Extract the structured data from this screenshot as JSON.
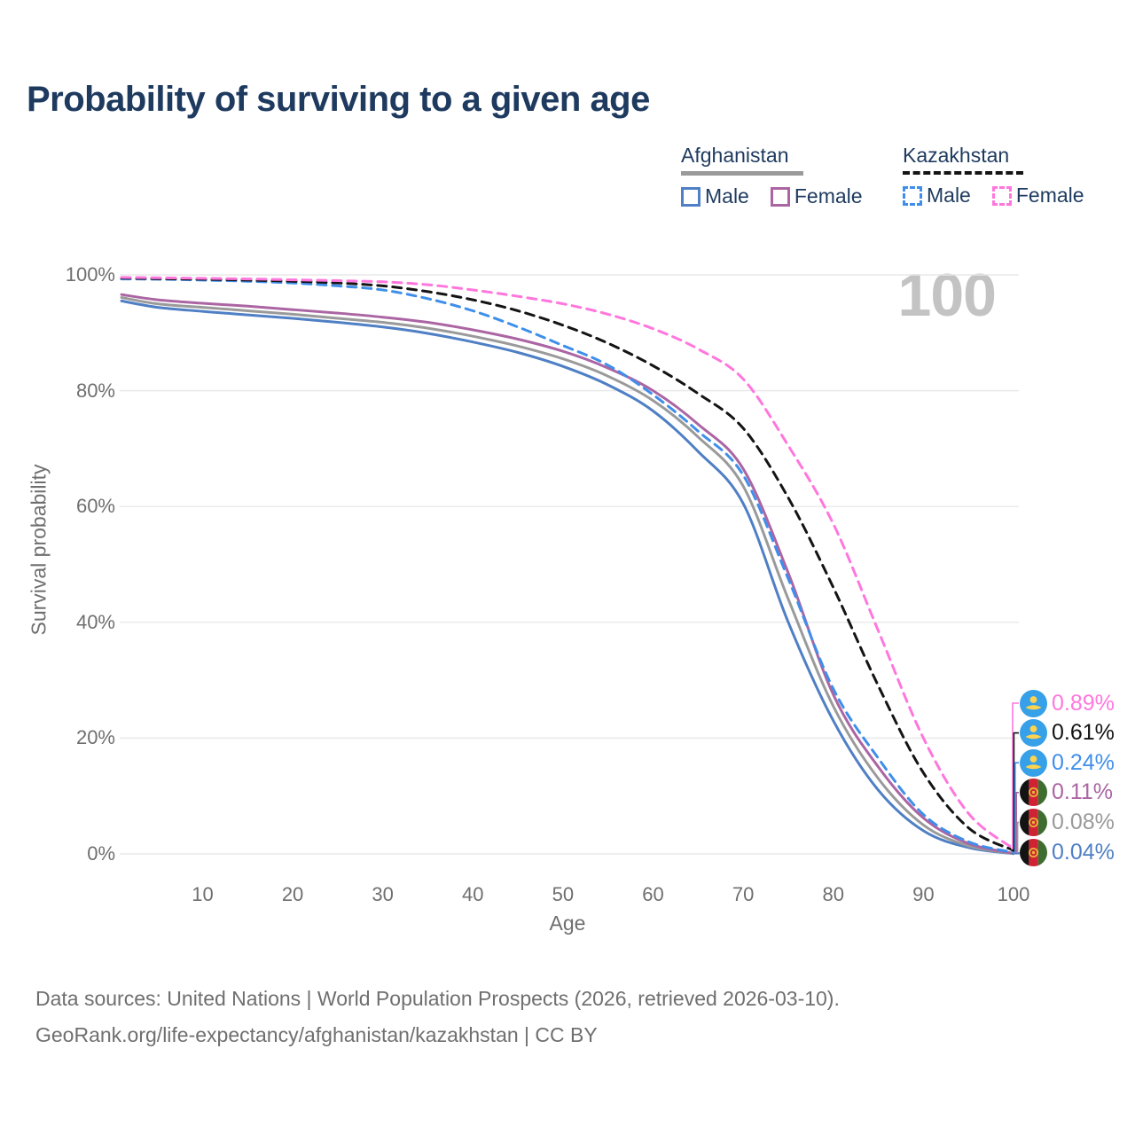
{
  "title": "Probability of surviving to a given age",
  "watermark_age": "100",
  "legend": {
    "groups": [
      {
        "label": "Afghanistan",
        "underline_style": "solid",
        "underline_color": "#9a9a9a",
        "items": [
          {
            "label": "Male",
            "color": "#4f7fc4",
            "dash": false
          },
          {
            "label": "Female",
            "color": "#ab65a3",
            "dash": false
          }
        ]
      },
      {
        "label": "Kazakhstan",
        "underline_style": "dashed",
        "underline_color": "#141414",
        "items": [
          {
            "label": "Male",
            "color": "#3f8fea",
            "dash": true
          },
          {
            "label": "Female",
            "color": "#ff77dd",
            "dash": true
          }
        ]
      }
    ]
  },
  "chart_data": {
    "type": "line",
    "title": "Probability of surviving to a given age",
    "xlabel": "Age",
    "ylabel": "Survival probability",
    "xlim": [
      1,
      100
    ],
    "ylim": [
      0,
      100
    ],
    "x_ticks": [
      10,
      20,
      30,
      40,
      50,
      60,
      70,
      80,
      90,
      100
    ],
    "y_ticks": [
      {
        "value": 100,
        "label": "100%"
      },
      {
        "value": 80,
        "label": "80%"
      },
      {
        "value": 60,
        "label": "60%"
      },
      {
        "value": 40,
        "label": "40%"
      },
      {
        "value": 20,
        "label": "20%"
      },
      {
        "value": 0,
        "label": "0%"
      }
    ],
    "grid": "horizontal",
    "legend_position": "top-right",
    "x": [
      1,
      5,
      10,
      15,
      20,
      25,
      30,
      35,
      40,
      45,
      50,
      55,
      60,
      65,
      70,
      75,
      80,
      85,
      90,
      95,
      100
    ],
    "series": [
      {
        "id": "kazakhstan-female",
        "name": "Kazakhstan Female",
        "country": "Kazakhstan",
        "sex": "Female",
        "color": "#ff77dd",
        "dash": true,
        "flag": "kazakhstan",
        "end_label": "0.89%",
        "values": [
          99.55,
          99.5,
          99.4,
          99.3,
          99.15,
          99.0,
          98.8,
          98.3,
          97.4,
          96.3,
          95.0,
          93.2,
          90.7,
          87.2,
          82.0,
          70.5,
          57.0,
          38.5,
          20.0,
          7.0,
          0.89
        ]
      },
      {
        "id": "kazakhstan-total",
        "name": "Kazakhstan",
        "country": "Kazakhstan",
        "sex": "Both",
        "color": "#141414",
        "dash": true,
        "flag": "kazakhstan",
        "end_label": "0.61%",
        "values": [
          99.45,
          99.35,
          99.25,
          99.1,
          98.9,
          98.6,
          98.1,
          97.1,
          95.7,
          93.8,
          91.3,
          88.2,
          84.3,
          79.5,
          73.5,
          61.5,
          46.0,
          29.0,
          14.0,
          4.5,
          0.61
        ]
      },
      {
        "id": "kazakhstan-male",
        "name": "Kazakhstan Male",
        "country": "Kazakhstan",
        "sex": "Male",
        "color": "#3f8fea",
        "dash": true,
        "flag": "kazakhstan",
        "end_label": "0.24%",
        "values": [
          99.3,
          99.25,
          99.1,
          98.9,
          98.6,
          98.1,
          97.4,
          95.9,
          93.8,
          91.0,
          87.8,
          84.4,
          79.3,
          73.0,
          65.4,
          47.5,
          28.5,
          16.5,
          6.8,
          2.1,
          0.24
        ]
      },
      {
        "id": "afghanistan-female",
        "name": "Afghanistan Female",
        "country": "Afghanistan",
        "sex": "Female",
        "color": "#ab65a3",
        "dash": false,
        "flag": "afghanistan",
        "end_label": "0.11%",
        "values": [
          96.6,
          95.7,
          95.1,
          94.6,
          94.0,
          93.4,
          92.7,
          91.8,
          90.5,
          88.9,
          86.8,
          83.9,
          80.0,
          74.2,
          66.5,
          48.5,
          27.5,
          15.0,
          6.2,
          1.8,
          0.11
        ]
      },
      {
        "id": "afghanistan-total",
        "name": "Afghanistan",
        "country": "Afghanistan",
        "sex": "Both",
        "color": "#9a9a9a",
        "dash": false,
        "flag": "afghanistan",
        "end_label": "0.08%",
        "values": [
          96.1,
          95.0,
          94.4,
          93.8,
          93.2,
          92.5,
          91.8,
          90.8,
          89.4,
          87.7,
          85.5,
          82.5,
          78.3,
          72.0,
          63.5,
          44.0,
          25.5,
          13.0,
          5.0,
          1.4,
          0.08
        ]
      },
      {
        "id": "afghanistan-male",
        "name": "Afghanistan Male",
        "country": "Afghanistan",
        "sex": "Male",
        "color": "#4f7fc4",
        "dash": false,
        "flag": "afghanistan",
        "end_label": "0.04%",
        "values": [
          95.5,
          94.4,
          93.7,
          93.1,
          92.5,
          91.8,
          91.0,
          89.9,
          88.4,
          86.6,
          84.2,
          81.0,
          76.5,
          69.5,
          60.5,
          40.0,
          23.0,
          11.0,
          4.0,
          1.1,
          0.04
        ]
      }
    ]
  },
  "footer": {
    "line1": "Data sources: United Nations | World Population Prospects (2026, retrieved 2026-03-10).",
    "line2": "GeoRank.org/life-expectancy/afghanistan/kazakhstan | CC BY"
  }
}
